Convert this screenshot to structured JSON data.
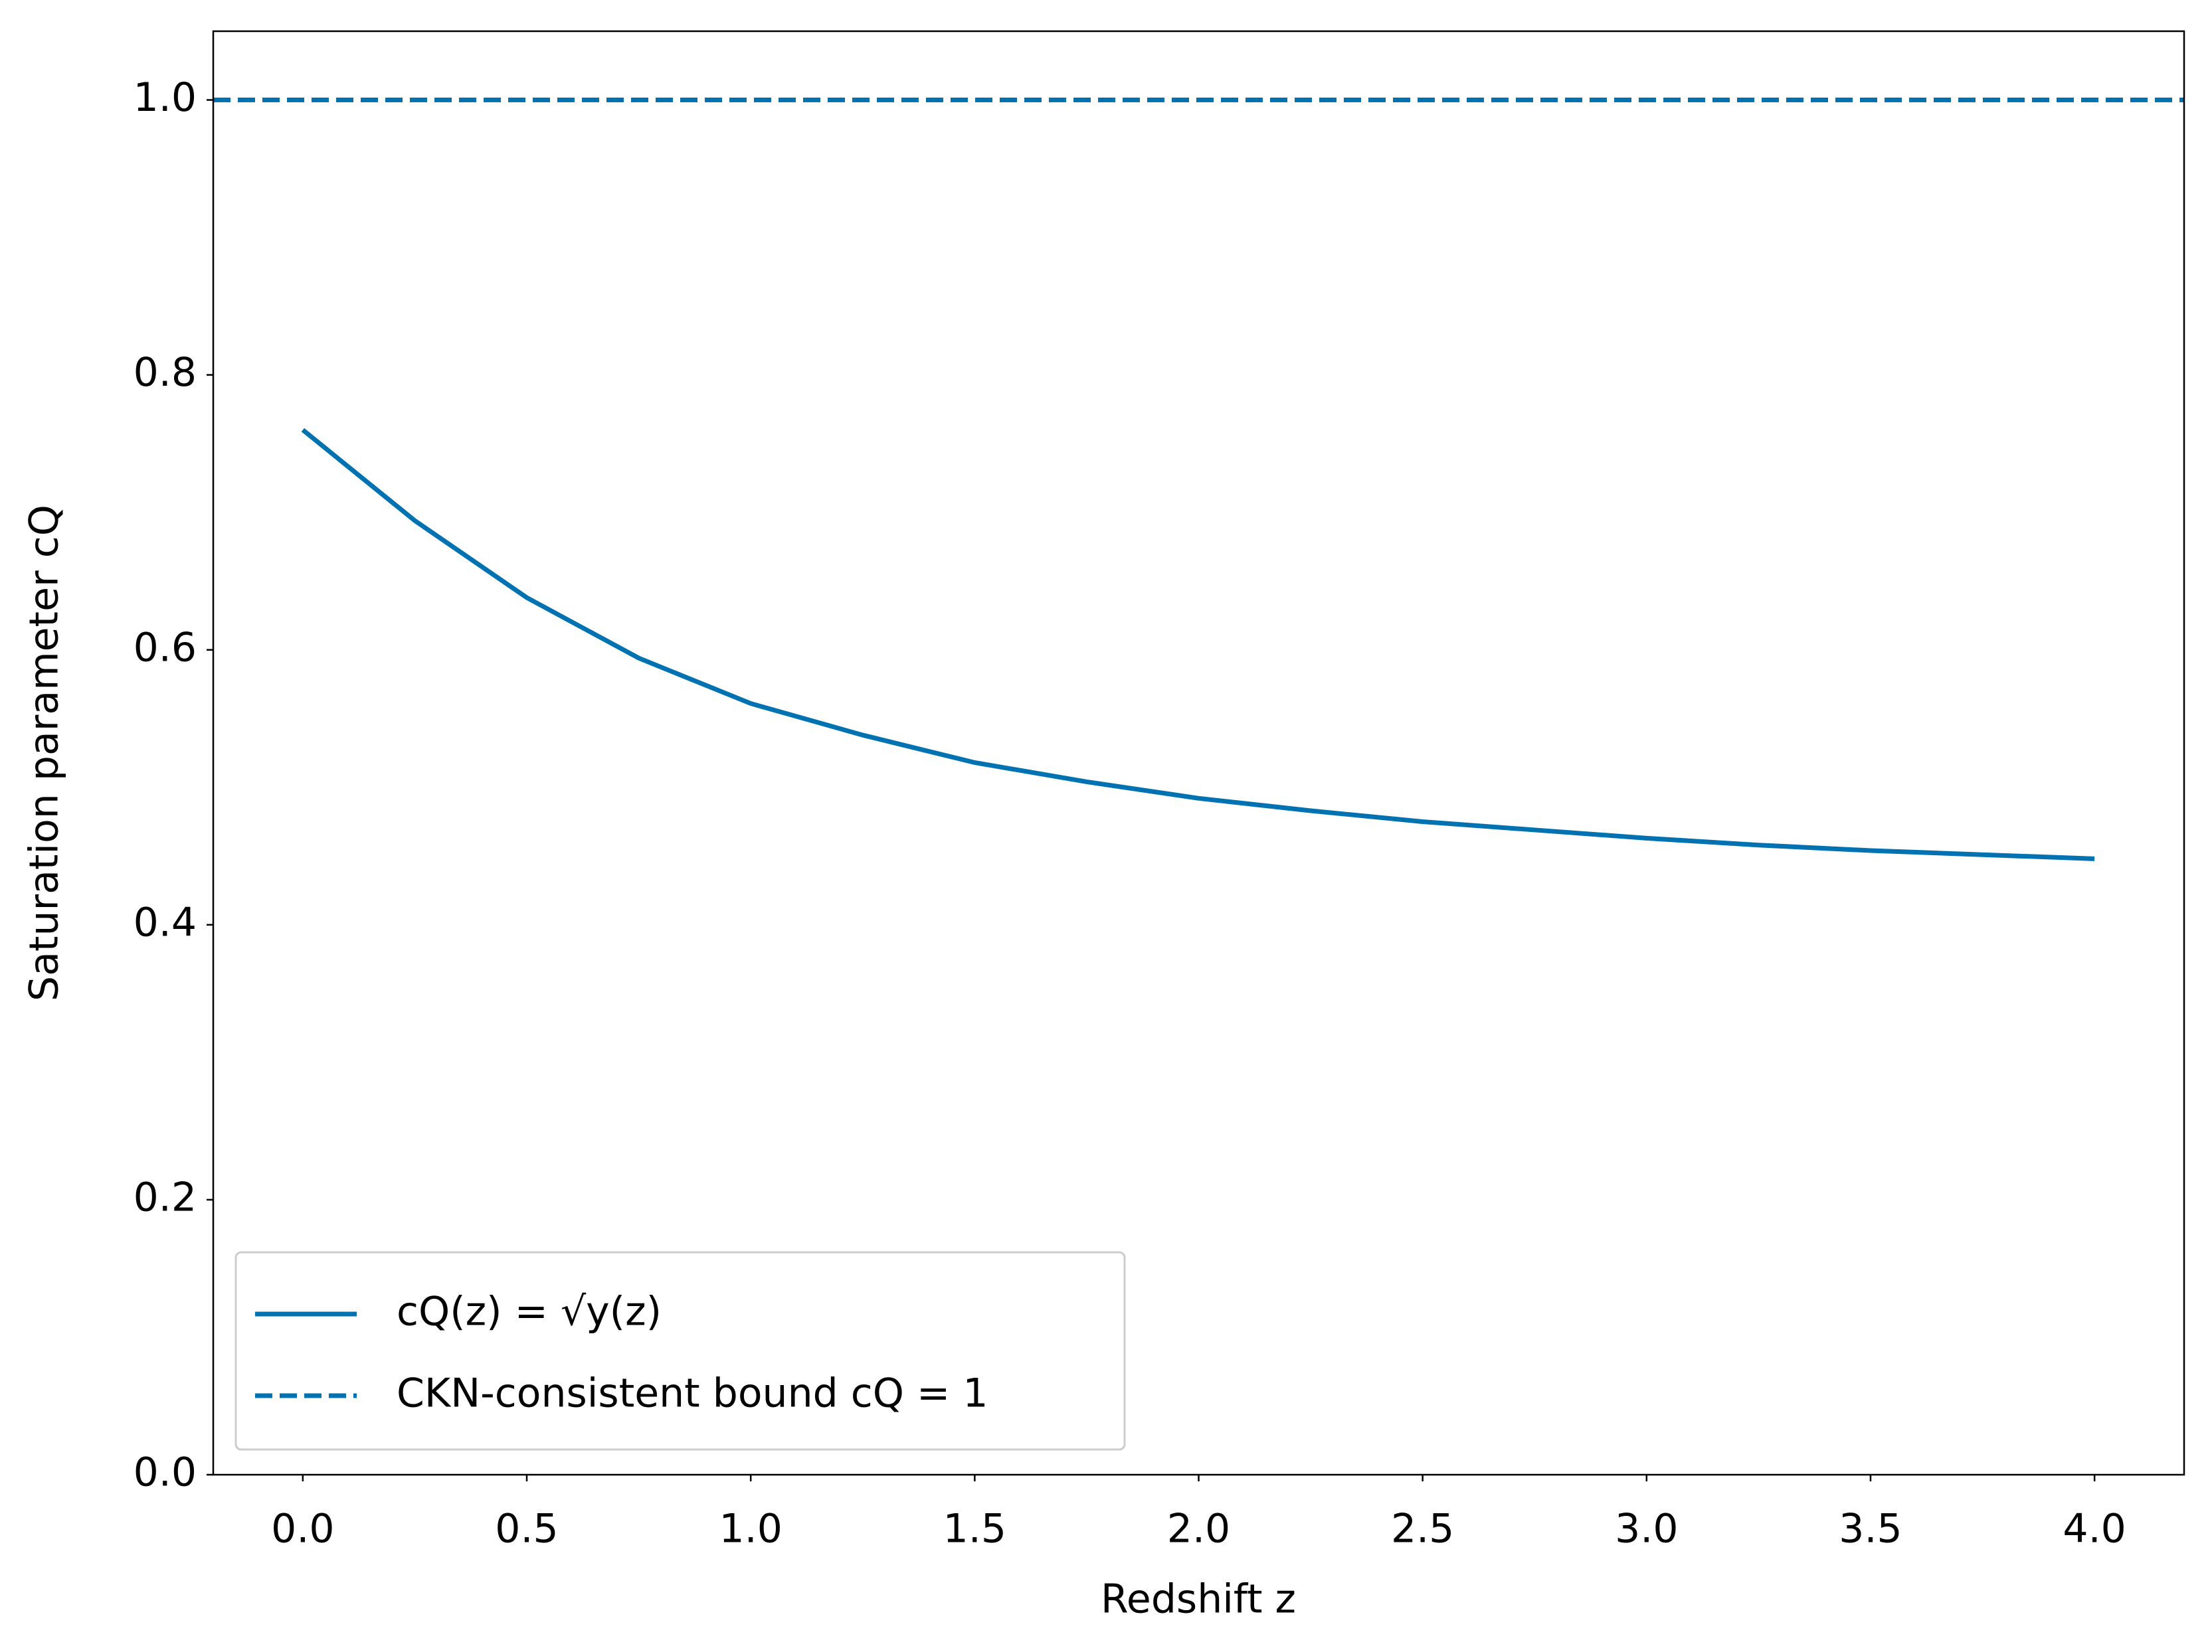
{
  "chart_data": {
    "type": "line",
    "xlabel": "Redshift z",
    "ylabel": "Saturation parameter cQ",
    "xlim": [
      -0.2,
      4.2
    ],
    "ylim": [
      0,
      1.05
    ],
    "xticks": [
      {
        "value": 0,
        "label": "0.0"
      },
      {
        "value": 0.5,
        "label": "0.5"
      },
      {
        "value": 1,
        "label": "1.0"
      },
      {
        "value": 1.5,
        "label": "1.5"
      },
      {
        "value": 2,
        "label": "2.0"
      },
      {
        "value": 2.5,
        "label": "2.5"
      },
      {
        "value": 3,
        "label": "3.0"
      },
      {
        "value": 3.5,
        "label": "3.5"
      },
      {
        "value": 4,
        "label": "4.0"
      }
    ],
    "yticks": [
      {
        "value": 0,
        "label": "0.0"
      },
      {
        "value": 0.2,
        "label": "0.2"
      },
      {
        "value": 0.4,
        "label": "0.4"
      },
      {
        "value": 0.6,
        "label": "0.6"
      },
      {
        "value": 0.8,
        "label": "0.8"
      },
      {
        "value": 1,
        "label": "1.0"
      }
    ],
    "legend": "lower left",
    "series": [
      {
        "name": "cQ(z) = √y(z)",
        "color": "#0072b2",
        "dashed": false,
        "x": [
          0,
          0.25,
          0.5,
          0.75,
          1,
          1.25,
          1.5,
          1.75,
          2,
          2.25,
          2.5,
          2.75,
          3,
          3.25,
          3.5,
          3.75,
          4
        ],
        "values": [
          0.76,
          0.694,
          0.638,
          0.594,
          0.561,
          0.538,
          0.518,
          0.504,
          0.492,
          0.483,
          0.475,
          0.469,
          0.463,
          0.458,
          0.454,
          0.451,
          0.448
        ]
      },
      {
        "name": "CKN-consistent bound cQ = 1",
        "color": "#0072b2",
        "dashed": true,
        "x": [
          -0.2,
          4.2
        ],
        "values": [
          1,
          1
        ]
      }
    ]
  }
}
